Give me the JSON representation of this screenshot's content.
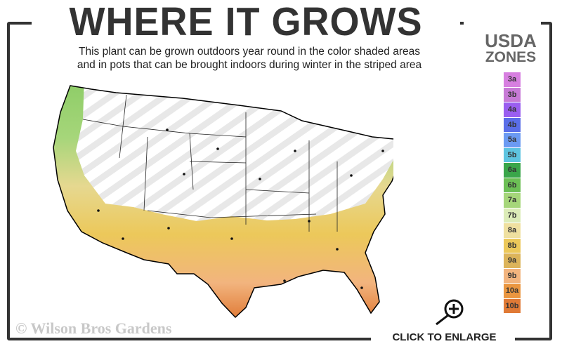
{
  "title": "WHERE IT GROWS",
  "subtitle_line1": "This plant can be grown outdoors year round in the color shaded areas",
  "subtitle_line2": "and in pots that can be brought indoors during winter in the striped area",
  "legend": {
    "title_line1": "USDA",
    "title_line2": "ZONES",
    "zones": [
      {
        "label": "3a",
        "color": "#d77fe0"
      },
      {
        "label": "3b",
        "color": "#c77ad6"
      },
      {
        "label": "4a",
        "color": "#9a5ef0"
      },
      {
        "label": "4b",
        "color": "#5a6ee8"
      },
      {
        "label": "5a",
        "color": "#6b9af2"
      },
      {
        "label": "5b",
        "color": "#5ec4e0"
      },
      {
        "label": "6a",
        "color": "#3aa64a"
      },
      {
        "label": "6b",
        "color": "#6cbf55"
      },
      {
        "label": "7a",
        "color": "#a6d67a"
      },
      {
        "label": "7b",
        "color": "#dcecb8"
      },
      {
        "label": "8a",
        "color": "#efe0a0"
      },
      {
        "label": "8b",
        "color": "#ecc85a"
      },
      {
        "label": "9a",
        "color": "#dcb45a"
      },
      {
        "label": "9b",
        "color": "#f2b47e"
      },
      {
        "label": "10a",
        "color": "#ea9640"
      },
      {
        "label": "10b",
        "color": "#e07a36"
      }
    ]
  },
  "copyright": "© Wilson Bros Gardens",
  "enlarge_label": "CLICK TO ENLARGE",
  "icons": {
    "enlarge": "magnifier-plus-icon"
  }
}
